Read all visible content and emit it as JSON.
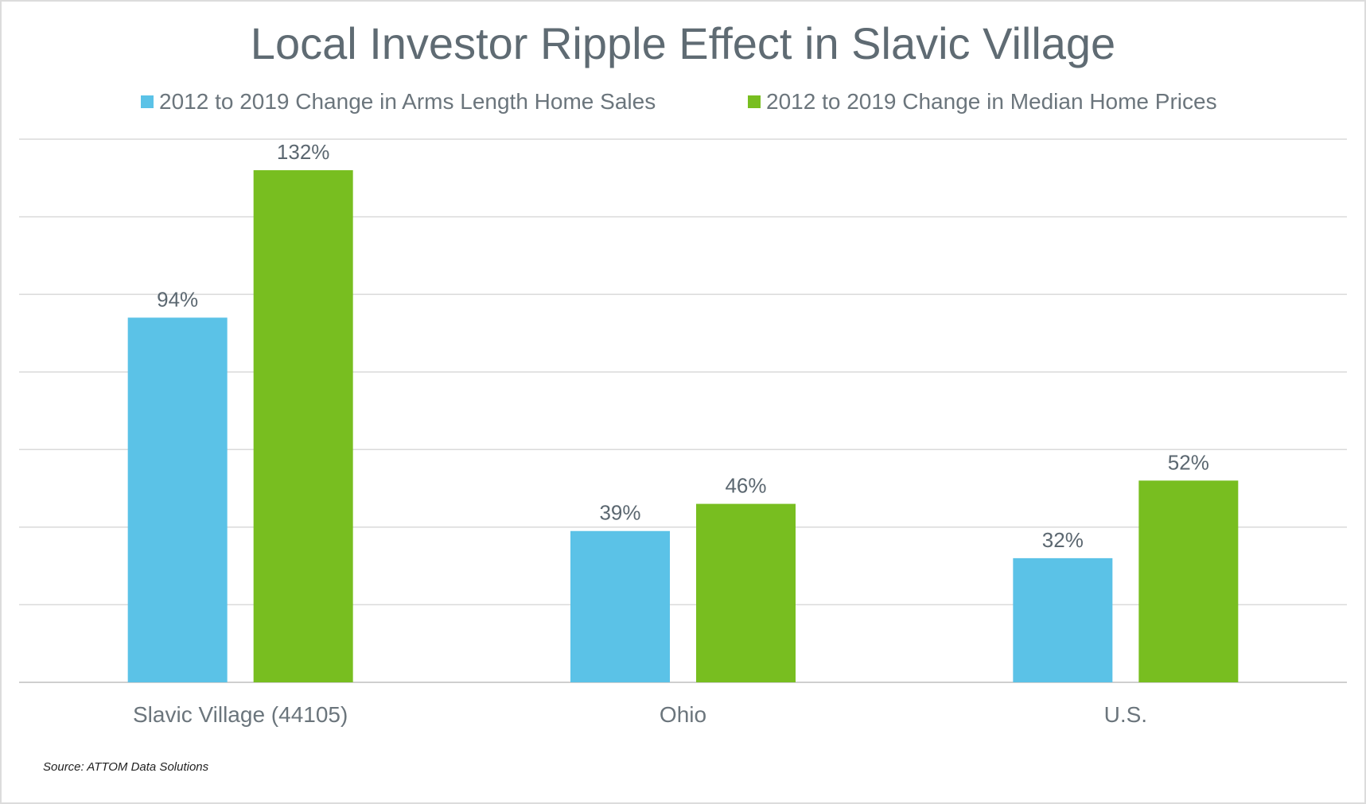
{
  "chart_data": {
    "type": "bar",
    "title": "Local Investor Ripple Effect in Slavic Village",
    "categories": [
      "Slavic Village (44105)",
      "Ohio",
      "U.S."
    ],
    "series": [
      {
        "name": "2012 to 2019 Change in Arms Length Home Sales",
        "values": [
          94,
          39,
          32
        ],
        "labels": [
          "94%",
          "39%",
          "32%"
        ],
        "color": "#5BC2E7"
      },
      {
        "name": "2012 to 2019 Change in Median Home Prices",
        "values": [
          132,
          46,
          52
        ],
        "labels": [
          "132%",
          "46%",
          "52%"
        ],
        "color": "#78BE20"
      }
    ],
    "xlabel": "",
    "ylabel": "",
    "ylim": [
      0,
      140
    ],
    "gridline_step": 20,
    "grid": true,
    "legend_position": "top",
    "source": "Source: ATTOM Data Solutions"
  }
}
